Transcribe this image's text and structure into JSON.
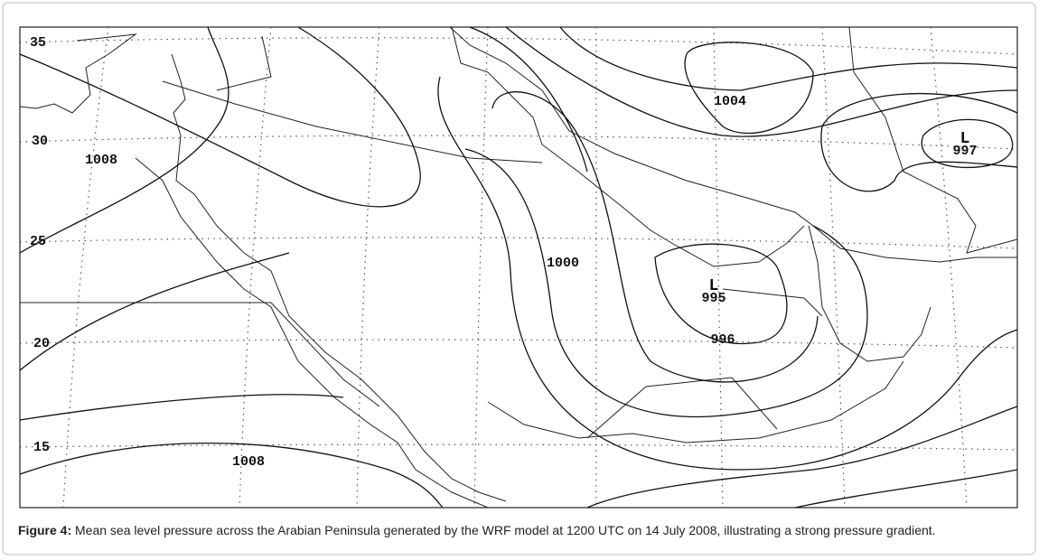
{
  "figure": {
    "lat_labels": [
      "35",
      "30",
      "25",
      "20",
      "15"
    ],
    "isobar_labels": [
      "1004",
      "1008",
      "1000",
      "996",
      "1008"
    ],
    "lows": [
      {
        "symbol": "L",
        "value": "997"
      },
      {
        "symbol": "L",
        "value": "995"
      }
    ],
    "caption": {
      "label": "Figure 4:",
      "text": "Mean sea level pressure across the Arabian Peninsula generated by the WRF model at 1200 UTC on 14 July 2008, illustrating a strong pressure gradient."
    }
  }
}
